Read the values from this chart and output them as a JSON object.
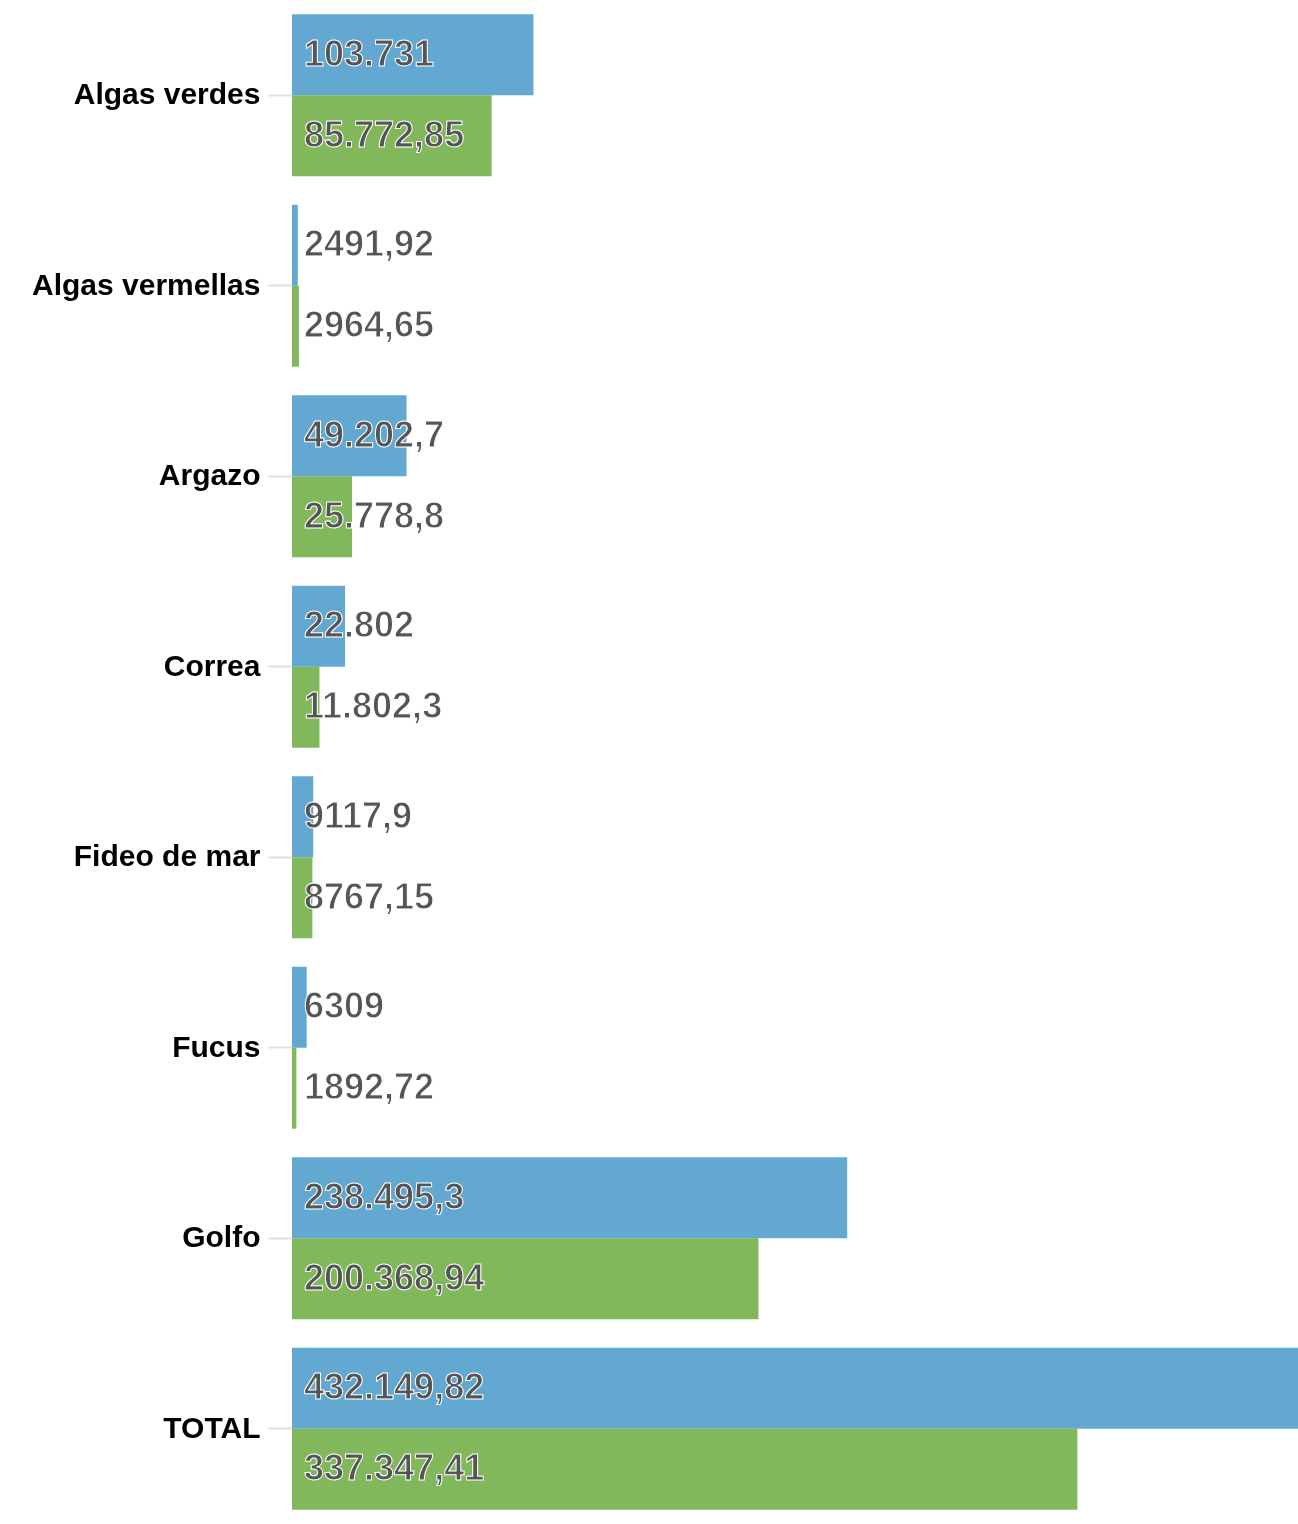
{
  "chart_data": {
    "type": "bar",
    "orientation": "horizontal",
    "categories": [
      "Algas verdes",
      "Algas vermellas",
      "Argazo",
      "Correa",
      "Fideo de mar",
      "Fucus",
      "Golfo",
      "TOTAL"
    ],
    "series": [
      {
        "color": "#63a8d1",
        "values": [
          103731,
          2491.92,
          49202.7,
          22802,
          9117.9,
          6309,
          238495.3,
          432149.82
        ],
        "value_labels": [
          "103.731",
          "2491,92",
          "49.202,7",
          "22.802",
          "9117,9",
          "6309",
          "238.495,3",
          "432.149,82"
        ]
      },
      {
        "color": "#80b85b",
        "values": [
          85772.85,
          2964.65,
          25778.8,
          11802.3,
          8767.15,
          1892.72,
          200368.94,
          337347.41
        ],
        "value_labels": [
          "85.772,85",
          "2964,65",
          "25.778,8",
          "11.802,3",
          "8767,15",
          "1892,72",
          "200.368,94",
          "337.347,41"
        ]
      }
    ]
  }
}
